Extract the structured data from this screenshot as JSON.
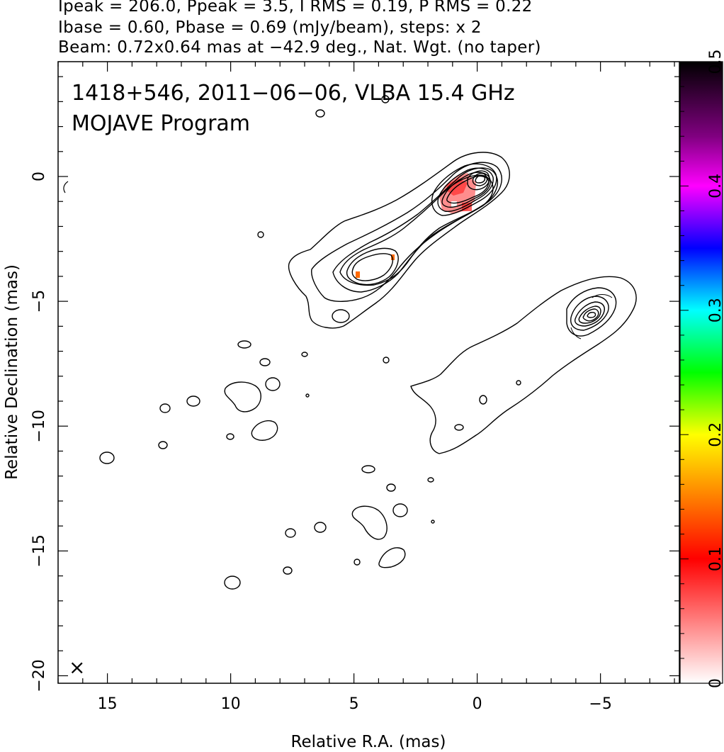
{
  "header": {
    "line1": "Ipeak = 206.0, Ppeak = 3.5, I RMS = 0.19, P RMS = 0.22",
    "line2": "Ibase = 0.60, Pbase = 0.69 (mJy/beam), steps: x 2",
    "line3": "Beam: 0.72x0.64 mas at −42.9 deg., Nat. Wgt. (no taper)"
  },
  "plot": {
    "title_line1": "1418+546, 2011−06−06, VLBA 15.4 GHz",
    "title_line2": "MOJAVE Program",
    "xlabel": "Relative R.A. (mas)",
    "ylabel": "Relative Declination (mas)",
    "beam_marker": "×"
  },
  "chart_data": {
    "type": "heatmap",
    "xlabel": "Relative R.A. (mas)",
    "ylabel": "Relative Declination (mas)",
    "xlim": [
      17,
      -8.2
    ],
    "ylim": [
      -20.3,
      4.6
    ],
    "x_ticks": [
      15,
      10,
      5,
      0,
      -5
    ],
    "x_tick_labels": [
      "15",
      "10",
      "5",
      "0",
      "−5"
    ],
    "y_ticks": [
      0,
      -5,
      -10,
      -15,
      -20
    ],
    "y_tick_labels": [
      "0",
      "−5",
      "−10",
      "−15",
      "−20"
    ],
    "colorbar": {
      "min": 0,
      "max": 0.5,
      "ticks": [
        0,
        0.1,
        0.2,
        0.3,
        0.4,
        0.5
      ],
      "tick_labels": [
        "0",
        "0.1",
        "0.2",
        "0.3",
        "0.4",
        "0.5"
      ],
      "colors": [
        "#ffffff",
        "#ff0000",
        "#ff8000",
        "#ffff00",
        "#00ff00",
        "#00ffff",
        "#0000ff",
        "#ff00ff",
        "#000000"
      ]
    },
    "contour_levels_mJy_per_beam": [
      0.6,
      1.2,
      2.4,
      4.8,
      9.6,
      19.2,
      38.4,
      76.8,
      153.6
    ],
    "peak_intensity_mJy_per_beam": 206.0,
    "peak_position_mas": [
      0,
      0
    ],
    "polarization_patches": [
      {
        "x": 1.2,
        "y": -0.7,
        "value": 0.09
      },
      {
        "x": 0.6,
        "y": -1.2,
        "value": 0.08
      },
      {
        "x": 1.6,
        "y": -1.1,
        "value": 0.06
      },
      {
        "x": 5.0,
        "y": -3.9,
        "value": 0.12
      },
      {
        "x": 3.6,
        "y": -3.3,
        "value": 0.12
      }
    ]
  }
}
